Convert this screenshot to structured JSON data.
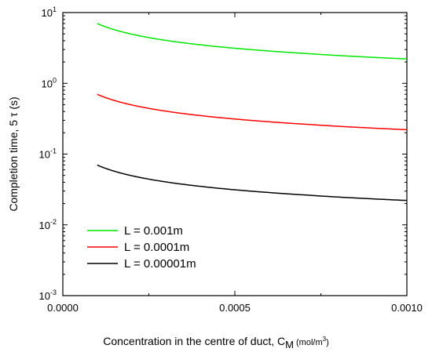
{
  "chart_data": {
    "type": "line",
    "title": "",
    "xlabel": {
      "main": "Concentration in the centre of duct, C",
      "sub": "M",
      "unit": "(mol/m",
      "unit_sup": "3",
      "unit_close": ")"
    },
    "ylabel": "Completion time, 5 τ (s)",
    "xlim": [
      0.0,
      0.001
    ],
    "ylim": [
      0.001,
      10
    ],
    "yscale": "log",
    "grid": false,
    "legend_position": "bottom-left",
    "x_ticks": [
      {
        "value": 0.0,
        "label": "0.0000"
      },
      {
        "value": 0.0005,
        "label": "0.0005"
      },
      {
        "value": 0.001,
        "label": "0.0010"
      }
    ],
    "y_ticks": [
      {
        "value": 10,
        "base": "10",
        "exp": "1"
      },
      {
        "value": 1,
        "base": "10",
        "exp": "0"
      },
      {
        "value": 0.1,
        "base": "10",
        "exp": "-1"
      },
      {
        "value": 0.01,
        "base": "10",
        "exp": "-2"
      },
      {
        "value": 0.001,
        "base": "10",
        "exp": "-3"
      }
    ],
    "x": [
      0.0001,
      0.00015,
      0.0002,
      0.0003,
      0.0004,
      0.0005,
      0.0006,
      0.0007,
      0.0008,
      0.0009,
      0.001
    ],
    "series": [
      {
        "name": "L = 0.001m",
        "color": "#00e600",
        "values": [
          7.0,
          5.72,
          4.95,
          4.04,
          3.5,
          3.13,
          2.86,
          2.65,
          2.47,
          2.33,
          2.21
        ]
      },
      {
        "name": "L = 0.0001m",
        "color": "#ff0000",
        "values": [
          0.7,
          0.572,
          0.495,
          0.404,
          0.35,
          0.313,
          0.286,
          0.265,
          0.247,
          0.233,
          0.221
        ]
      },
      {
        "name": "L = 0.00001m",
        "color": "#000000",
        "values": [
          0.07,
          0.0572,
          0.0495,
          0.0404,
          0.035,
          0.0313,
          0.0286,
          0.0265,
          0.0247,
          0.0233,
          0.0221
        ]
      }
    ]
  }
}
